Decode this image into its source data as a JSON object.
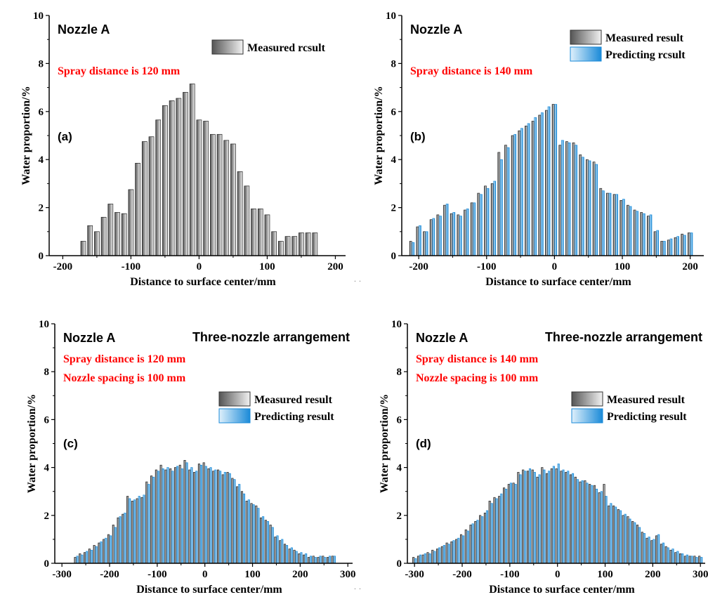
{
  "figure": {
    "dots_top": "· ·",
    "dots_bottom": "· ·"
  },
  "colors": {
    "measured_dark": "#555555",
    "measured_light": "#f2f2f2",
    "predicted_dark": "#1a8ad8",
    "predicted_light": "#dff0fb",
    "highlight": "#ff0000",
    "axis": "#000000"
  },
  "chart_data": [
    {
      "id": "a",
      "type": "bar",
      "panel_label": "(a)",
      "nozzle_label": "Nozzle A",
      "arrangement_label": "",
      "annotations": [
        "Spray distance is 120 mm"
      ],
      "legend": [
        "Measured rcsult"
      ],
      "xlabel": "Distance to surface center/mm",
      "ylabel": "Water proportion/%",
      "xlim": [
        -220,
        215
      ],
      "ylim": [
        0,
        10
      ],
      "xticks": [
        -200,
        -100,
        0,
        100,
        200
      ],
      "yticks": [
        0,
        2,
        4,
        6,
        8,
        10
      ],
      "bar_width": 7,
      "series": [
        {
          "name": "Measured result",
          "x": [
            -170,
            -160,
            -150,
            -140,
            -130,
            -120,
            -110,
            -100,
            -90,
            -80,
            -70,
            -60,
            -50,
            -40,
            -30,
            -20,
            -10,
            0,
            10,
            20,
            30,
            40,
            50,
            60,
            70,
            80,
            90,
            100,
            110,
            120,
            130,
            140,
            150,
            160,
            170
          ],
          "values": [
            0.6,
            1.25,
            1.0,
            1.6,
            2.15,
            1.8,
            1.75,
            2.75,
            3.85,
            4.75,
            4.95,
            5.65,
            6.25,
            6.45,
            6.55,
            6.8,
            7.15,
            5.65,
            5.6,
            5.05,
            5.05,
            4.8,
            4.65,
            3.5,
            2.9,
            1.95,
            1.95,
            1.7,
            1.0,
            0.6,
            0.8,
            0.8,
            0.95,
            0.95,
            0.95
          ]
        }
      ]
    },
    {
      "id": "b",
      "type": "bar",
      "panel_label": "(b)",
      "nozzle_label": "Nozzle A",
      "arrangement_label": "",
      "annotations": [
        "Spray distance is 140 mm"
      ],
      "legend": [
        "Measured result",
        "Predicting rcsult"
      ],
      "xlabel": "Distance to surface center/mm",
      "ylabel": "Water proportion/%",
      "xlim": [
        -225,
        220
      ],
      "ylim": [
        0,
        10
      ],
      "xticks": [
        -200,
        -100,
        0,
        100,
        200
      ],
      "yticks": [
        0,
        2,
        4,
        6,
        8,
        10
      ],
      "bar_width": 3,
      "series": [
        {
          "name": "Measured result",
          "x": [
            -210,
            -200,
            -190,
            -180,
            -170,
            -160,
            -150,
            -140,
            -130,
            -120,
            -110,
            -100,
            -90,
            -80,
            -70,
            -60,
            -50,
            -40,
            -30,
            -20,
            -10,
            0,
            10,
            20,
            30,
            40,
            50,
            60,
            70,
            80,
            90,
            100,
            110,
            120,
            130,
            140,
            150,
            160,
            170,
            180,
            190,
            200
          ],
          "values": [
            0.6,
            1.2,
            1.0,
            1.5,
            1.7,
            2.1,
            1.75,
            1.7,
            1.9,
            2.2,
            2.6,
            2.9,
            3.0,
            4.3,
            4.6,
            5.0,
            5.2,
            5.4,
            5.6,
            5.85,
            6.05,
            6.3,
            4.6,
            4.75,
            4.7,
            4.2,
            4.0,
            3.9,
            2.8,
            2.6,
            2.55,
            2.3,
            2.1,
            1.9,
            1.8,
            1.65,
            1.0,
            0.6,
            0.65,
            0.75,
            0.9,
            0.95
          ]
        },
        {
          "name": "Predicting result",
          "x": [
            -210,
            -200,
            -190,
            -180,
            -170,
            -160,
            -150,
            -140,
            -130,
            -120,
            -110,
            -100,
            -90,
            -80,
            -70,
            -60,
            -50,
            -40,
            -30,
            -20,
            -10,
            0,
            10,
            20,
            30,
            40,
            50,
            60,
            70,
            80,
            90,
            100,
            110,
            120,
            130,
            140,
            150,
            160,
            170,
            180,
            190,
            200
          ],
          "values": [
            0.55,
            1.25,
            1.0,
            1.55,
            1.65,
            2.15,
            1.8,
            1.65,
            1.95,
            2.2,
            2.55,
            2.8,
            3.1,
            4.0,
            4.5,
            5.05,
            5.3,
            5.5,
            5.75,
            5.95,
            6.2,
            6.3,
            4.8,
            4.7,
            4.6,
            4.1,
            3.95,
            3.8,
            2.7,
            2.6,
            2.55,
            2.35,
            2.05,
            1.85,
            1.75,
            1.7,
            1.05,
            0.6,
            0.7,
            0.8,
            0.85,
            0.95
          ]
        }
      ]
    },
    {
      "id": "c",
      "type": "bar",
      "panel_label": "(c)",
      "nozzle_label": "Nozzle A",
      "arrangement_label": "Three-nozzle arrangement",
      "annotations": [
        "Spray distance is 120 mm",
        "Nozzle spacing is 100 mm"
      ],
      "legend": [
        "Measured result",
        "Predicting result"
      ],
      "xlabel": "Distance to surface center/mm",
      "ylabel": "Water proportion/%",
      "xlim": [
        -315,
        310
      ],
      "ylim": [
        0,
        10
      ],
      "xticks": [
        -300,
        -200,
        -100,
        0,
        100,
        200,
        300
      ],
      "yticks": [
        0,
        2,
        4,
        6,
        8,
        10
      ],
      "bar_width": 2.4,
      "series": [
        {
          "name": "Measured result",
          "x": [
            -270,
            -260,
            -250,
            -240,
            -230,
            -220,
            -210,
            -200,
            -190,
            -180,
            -170,
            -160,
            -150,
            -140,
            -130,
            -120,
            -110,
            -100,
            -90,
            -80,
            -70,
            -60,
            -50,
            -40,
            -30,
            -20,
            -10,
            0,
            10,
            20,
            30,
            40,
            50,
            60,
            70,
            80,
            90,
            100,
            110,
            120,
            130,
            140,
            150,
            160,
            170,
            180,
            190,
            200,
            210,
            220,
            230,
            240,
            250,
            260,
            270
          ],
          "values": [
            0.25,
            0.4,
            0.45,
            0.6,
            0.75,
            0.85,
            1.0,
            1.2,
            1.6,
            1.9,
            2.05,
            2.8,
            2.6,
            2.7,
            2.75,
            3.4,
            3.65,
            3.9,
            4.1,
            3.9,
            3.95,
            4.0,
            4.1,
            4.3,
            3.9,
            3.8,
            4.15,
            4.2,
            3.95,
            3.85,
            3.9,
            3.7,
            3.8,
            3.55,
            3.2,
            3.0,
            2.6,
            2.5,
            2.4,
            1.9,
            1.8,
            1.6,
            1.1,
            0.95,
            0.8,
            0.6,
            0.55,
            0.4,
            0.35,
            0.25,
            0.3,
            0.25,
            0.3,
            0.25,
            0.3
          ]
        },
        {
          "name": "Predicting result",
          "x": [
            -270,
            -260,
            -250,
            -240,
            -230,
            -220,
            -210,
            -200,
            -190,
            -180,
            -170,
            -160,
            -150,
            -140,
            -130,
            -120,
            -110,
            -100,
            -90,
            -80,
            -70,
            -60,
            -50,
            -40,
            -30,
            -20,
            -10,
            0,
            10,
            20,
            30,
            40,
            50,
            60,
            70,
            80,
            90,
            100,
            110,
            120,
            130,
            140,
            150,
            160,
            170,
            180,
            190,
            200,
            210,
            220,
            230,
            240,
            250,
            260,
            270
          ],
          "values": [
            0.3,
            0.35,
            0.5,
            0.55,
            0.7,
            0.9,
            1.05,
            1.15,
            1.5,
            1.95,
            2.1,
            2.7,
            2.65,
            2.8,
            2.85,
            3.3,
            3.6,
            3.85,
            3.95,
            4.0,
            3.85,
            4.05,
            3.95,
            4.2,
            4.0,
            3.85,
            4.1,
            4.05,
            4.0,
            3.9,
            3.85,
            3.8,
            3.75,
            3.5,
            3.3,
            2.9,
            2.65,
            2.45,
            2.3,
            1.95,
            1.75,
            1.5,
            1.15,
            1.0,
            0.75,
            0.65,
            0.5,
            0.45,
            0.4,
            0.3,
            0.25,
            0.3,
            0.25,
            0.3,
            0.3
          ]
        }
      ]
    },
    {
      "id": "d",
      "type": "bar",
      "panel_label": "(d)",
      "nozzle_label": "Nozzle A",
      "arrangement_label": "Three-nozzle arrangement",
      "annotations": [
        "Spray distance is 140 mm",
        "Nozzle spacing is 100 mm"
      ],
      "legend": [
        "Measured result",
        "Predicting result"
      ],
      "xlabel": "Distance to surface center/mm",
      "ylabel": "Water proportion/%",
      "xlim": [
        -315,
        310
      ],
      "ylim": [
        0,
        10
      ],
      "xticks": [
        -300,
        -200,
        -100,
        0,
        100,
        200,
        300
      ],
      "yticks": [
        0,
        2,
        4,
        6,
        8,
        10
      ],
      "bar_width": 2.4,
      "series": [
        {
          "name": "Measured result",
          "x": [
            -300,
            -290,
            -280,
            -270,
            -260,
            -250,
            -240,
            -230,
            -220,
            -210,
            -200,
            -190,
            -180,
            -170,
            -160,
            -150,
            -140,
            -130,
            -120,
            -110,
            -100,
            -90,
            -80,
            -70,
            -60,
            -50,
            -40,
            -30,
            -20,
            -10,
            0,
            10,
            20,
            30,
            40,
            50,
            60,
            70,
            80,
            90,
            100,
            110,
            120,
            130,
            140,
            150,
            160,
            170,
            180,
            190,
            200,
            210,
            220,
            230,
            240,
            250,
            260,
            270,
            280,
            290,
            300
          ],
          "values": [
            0.25,
            0.3,
            0.35,
            0.45,
            0.55,
            0.6,
            0.7,
            0.85,
            0.9,
            1.0,
            1.2,
            1.4,
            1.6,
            1.75,
            2.0,
            2.1,
            2.6,
            2.75,
            2.8,
            3.15,
            3.3,
            3.35,
            3.8,
            3.9,
            3.85,
            3.9,
            3.6,
            4.0,
            3.75,
            3.95,
            3.95,
            3.85,
            3.8,
            3.7,
            3.6,
            3.4,
            3.45,
            3.3,
            3.25,
            2.95,
            3.3,
            2.4,
            2.4,
            2.25,
            2.0,
            1.95,
            1.75,
            1.6,
            1.3,
            1.05,
            0.95,
            1.15,
            0.8,
            0.7,
            0.55,
            0.45,
            0.4,
            0.3,
            0.3,
            0.3,
            0.3
          ]
        },
        {
          "name": "Predicting result",
          "x": [
            -300,
            -290,
            -280,
            -270,
            -260,
            -250,
            -240,
            -230,
            -220,
            -210,
            -200,
            -190,
            -180,
            -170,
            -160,
            -150,
            -140,
            -130,
            -120,
            -110,
            -100,
            -90,
            -80,
            -70,
            -60,
            -50,
            -40,
            -30,
            -20,
            -10,
            0,
            10,
            20,
            30,
            40,
            50,
            60,
            70,
            80,
            90,
            100,
            110,
            120,
            130,
            140,
            150,
            160,
            170,
            180,
            190,
            200,
            210,
            220,
            230,
            240,
            250,
            260,
            270,
            280,
            290,
            300
          ],
          "values": [
            0.2,
            0.35,
            0.4,
            0.4,
            0.5,
            0.65,
            0.75,
            0.8,
            0.95,
            1.05,
            1.15,
            1.35,
            1.65,
            1.8,
            1.95,
            2.2,
            2.5,
            2.7,
            2.9,
            3.1,
            3.35,
            3.3,
            3.7,
            3.85,
            3.95,
            3.8,
            3.7,
            3.9,
            3.85,
            4.05,
            4.15,
            3.9,
            3.85,
            3.75,
            3.5,
            3.45,
            3.35,
            3.25,
            3.1,
            3.0,
            2.8,
            2.5,
            2.35,
            2.2,
            2.05,
            1.85,
            1.7,
            1.5,
            1.25,
            1.1,
            1.0,
            1.2,
            0.85,
            0.65,
            0.6,
            0.5,
            0.4,
            0.35,
            0.3,
            0.25,
            0.25
          ]
        }
      ]
    }
  ]
}
